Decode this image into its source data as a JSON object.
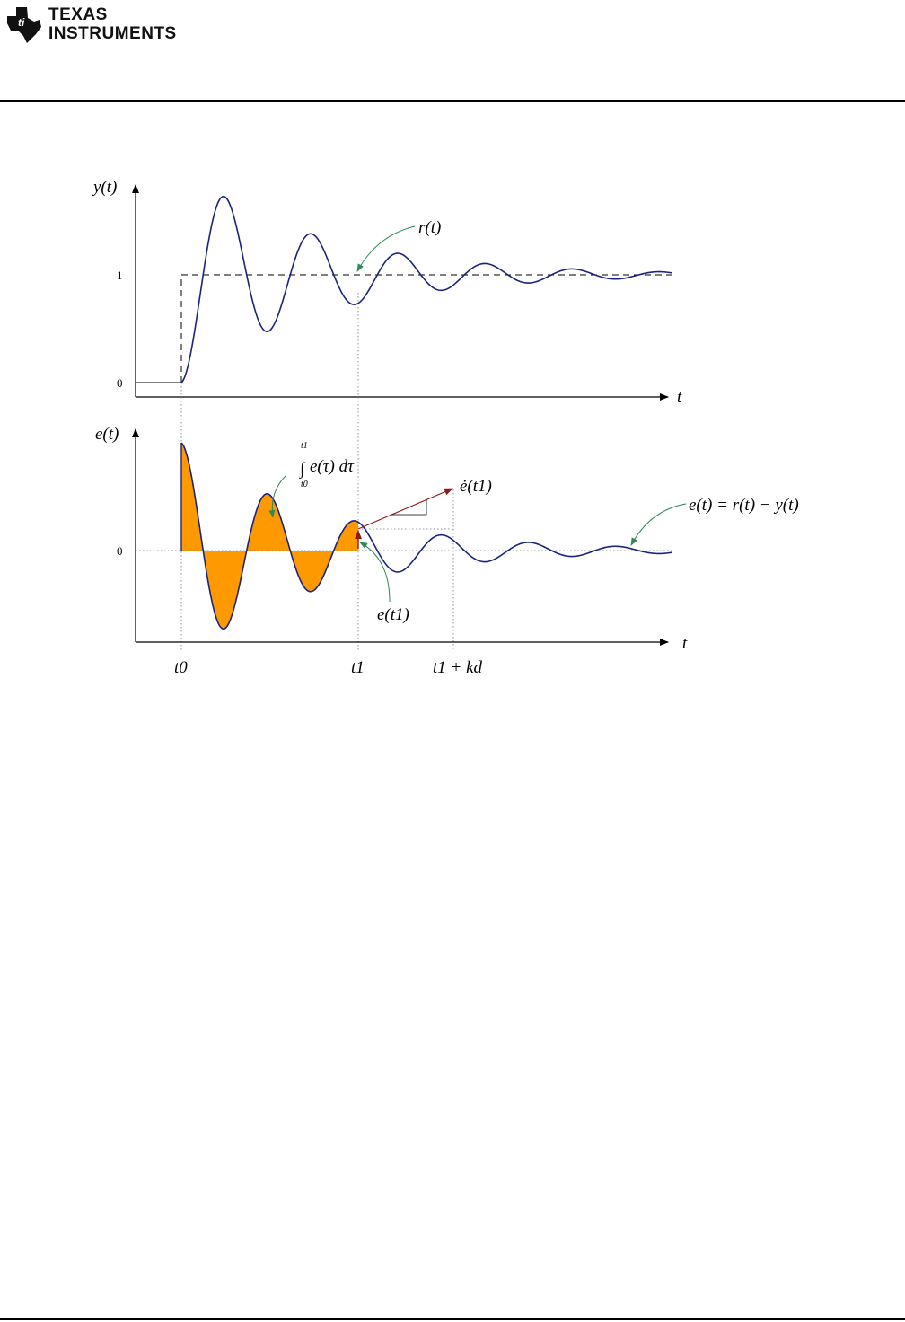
{
  "header": {
    "brand_line1": "Texas",
    "brand_line2": "Instruments"
  },
  "colors": {
    "curve": "#1a237e",
    "fill": "#ff9900",
    "arrow": "#8b1a1a",
    "pointer": "#2e8b57",
    "guide": "#777777"
  },
  "top_plot": {
    "y_axis_label": "y(t)",
    "x_axis_label": "t",
    "tick_1": "1",
    "tick_0": "0",
    "reference_label": "r(t)"
  },
  "bottom_plot": {
    "y_axis_label": "e(t)",
    "x_axis_label": "t",
    "tick_0": "0",
    "integral_upper": "t1",
    "integral_lower": "t0",
    "integral_body": "e(τ) dτ",
    "derivative_label": "ė(t1)",
    "point_label": "e(t1)",
    "equation_label": "e(t) = r(t) − y(t)"
  },
  "time_labels": {
    "t0": "t0",
    "t1": "t1",
    "t1_plus_kd": "t1 + kd"
  }
}
